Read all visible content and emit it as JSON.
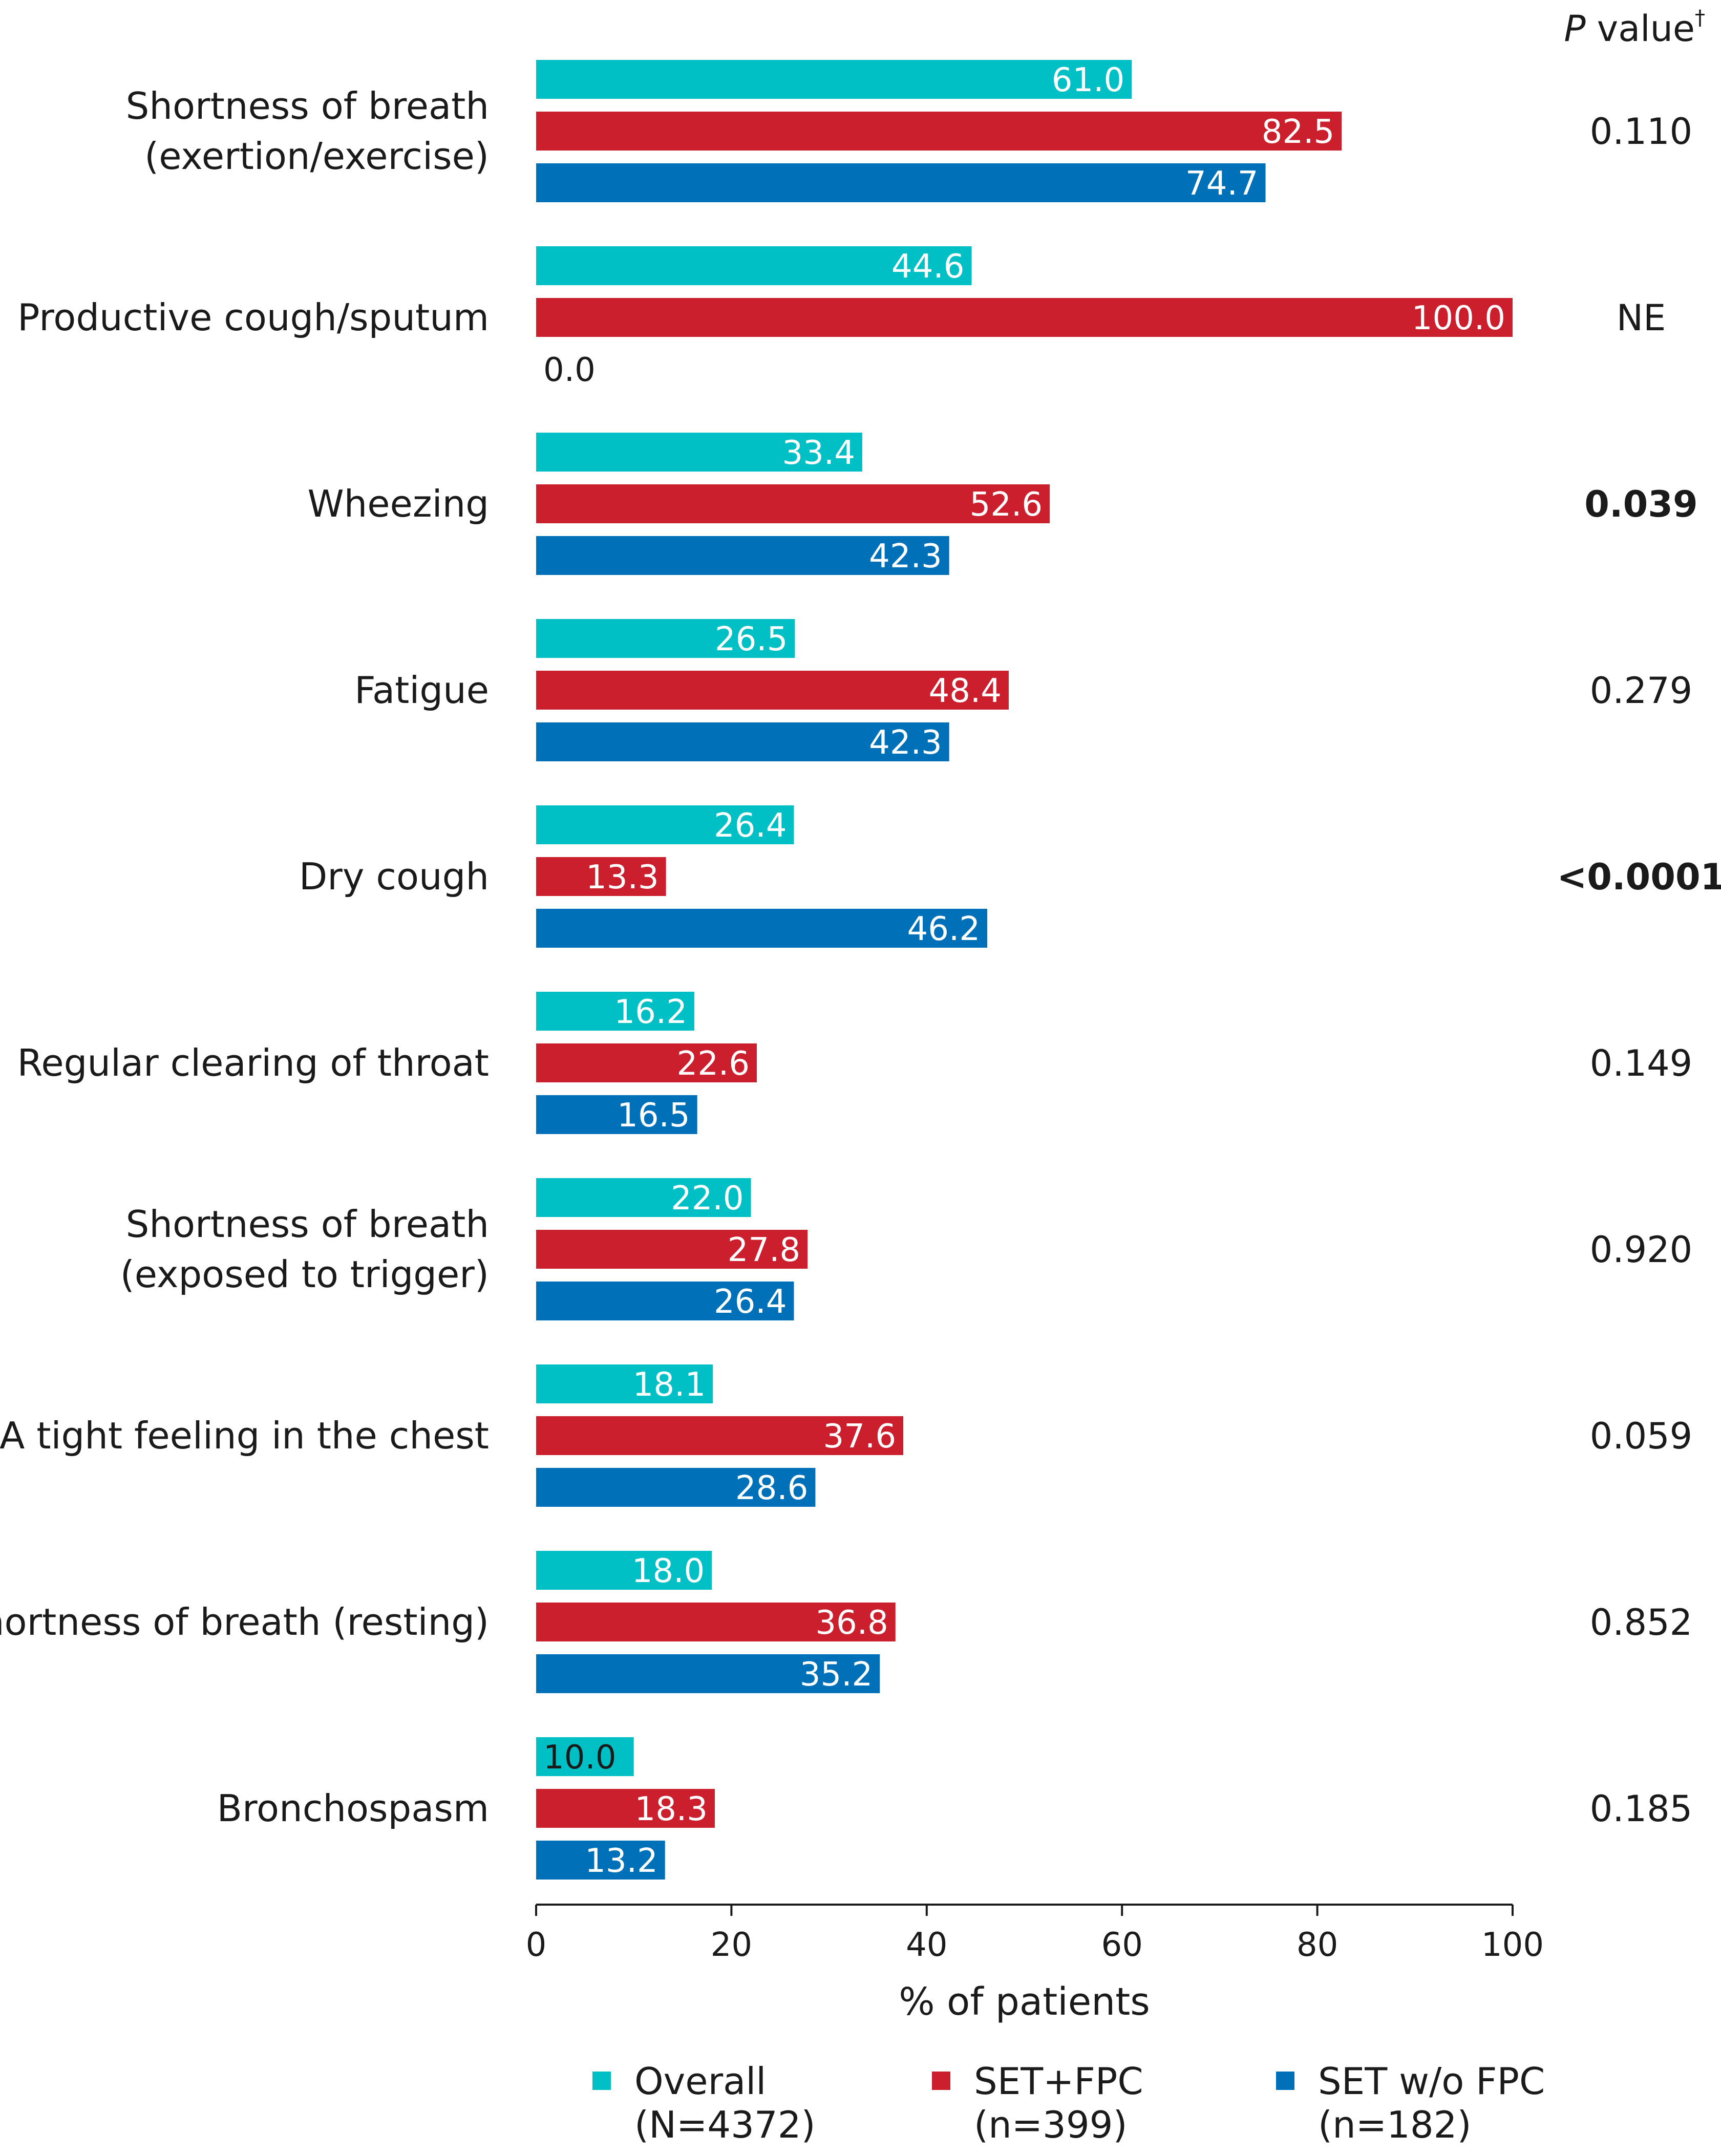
{
  "chart_data": {
    "type": "bar",
    "orientation": "horizontal",
    "xlabel": "% of patients",
    "xlim": [
      0,
      100
    ],
    "xticks": [
      0,
      20,
      40,
      60,
      80,
      100
    ],
    "pvalue_header": {
      "italic": "P",
      "text": " value",
      "sup": "†"
    },
    "categories": [
      {
        "lines": [
          "Shortness of breath",
          "(exertion/exercise)"
        ],
        "values": [
          61.0,
          82.5,
          74.7
        ],
        "pvalue": "0.110",
        "bold": false
      },
      {
        "lines": [
          "Productive cough/sputum"
        ],
        "values": [
          44.6,
          100.0,
          0.0
        ],
        "pvalue": "NE",
        "bold": false
      },
      {
        "lines": [
          "Wheezing"
        ],
        "values": [
          33.4,
          52.6,
          42.3
        ],
        "pvalue": "0.039",
        "bold": true
      },
      {
        "lines": [
          "Fatigue"
        ],
        "values": [
          26.5,
          48.4,
          42.3
        ],
        "pvalue": "0.279",
        "bold": false
      },
      {
        "lines": [
          "Dry cough"
        ],
        "values": [
          26.4,
          13.3,
          46.2
        ],
        "pvalue": "<0.0001",
        "bold": true
      },
      {
        "lines": [
          "Regular clearing of throat"
        ],
        "values": [
          16.2,
          22.6,
          16.5
        ],
        "pvalue": "0.149",
        "bold": false
      },
      {
        "lines": [
          "Shortness of breath",
          "(exposed to trigger)"
        ],
        "values": [
          22.0,
          27.8,
          26.4
        ],
        "pvalue": "0.920",
        "bold": false
      },
      {
        "lines": [
          "A tight feeling in the chest"
        ],
        "values": [
          18.1,
          37.6,
          28.6
        ],
        "pvalue": "0.059",
        "bold": false
      },
      {
        "lines": [
          "Shortness of breath (resting)"
        ],
        "values": [
          18.0,
          36.8,
          35.2
        ],
        "pvalue": "0.852",
        "bold": false
      },
      {
        "lines": [
          "Bronchospasm"
        ],
        "values": [
          10.0,
          18.3,
          13.2
        ],
        "pvalue": "0.185",
        "bold": false
      }
    ],
    "series": [
      {
        "name": "Overall",
        "sub": "(N=4372)",
        "color": "#00c0c6"
      },
      {
        "name": "SET+FPC",
        "sub": "(n=399)",
        "color": "#cc1f2d"
      },
      {
        "name": "SET w/o FPC",
        "sub": "(n=182)",
        "color": "#0070b8"
      }
    ]
  }
}
